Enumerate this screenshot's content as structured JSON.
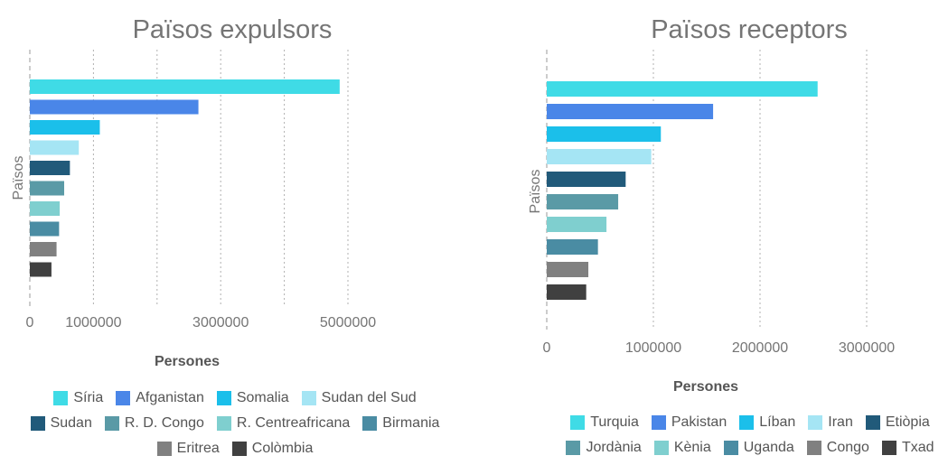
{
  "chart_data": [
    {
      "type": "bar",
      "orientation": "horizontal",
      "title": "Països expulsors",
      "xlabel": "Persones",
      "ylabel": "Països",
      "xlim": [
        0,
        5000000
      ],
      "xticks": [
        0,
        1000000,
        3000000,
        5000000
      ],
      "grid": true,
      "legend_position": "bottom",
      "series": [
        {
          "name": "Síria",
          "value": 4870000,
          "color": "#3fdbe6"
        },
        {
          "name": "Afganistan",
          "value": 2650000,
          "color": "#4a86e8"
        },
        {
          "name": "Somalia",
          "value": 1100000,
          "color": "#1bbfea"
        },
        {
          "name": "Sudan del Sud",
          "value": 770000,
          "color": "#a5e5f4"
        },
        {
          "name": "Sudan",
          "value": 630000,
          "color": "#215a7a"
        },
        {
          "name": "R. D. Congo",
          "value": 540000,
          "color": "#5a9aa6"
        },
        {
          "name": "R. Centreafricana",
          "value": 470000,
          "color": "#7fcfcf"
        },
        {
          "name": "Birmania",
          "value": 460000,
          "color": "#4a8ca3"
        },
        {
          "name": "Eritrea",
          "value": 420000,
          "color": "#808080"
        },
        {
          "name": "Colòmbia",
          "value": 340000,
          "color": "#404040"
        }
      ]
    },
    {
      "type": "bar",
      "orientation": "horizontal",
      "title": "Països receptors",
      "xlabel": "Persones",
      "ylabel": "Països",
      "xlim": [
        0,
        3000000
      ],
      "xticks": [
        0,
        1000000,
        2000000,
        3000000
      ],
      "grid": true,
      "legend_position": "bottom",
      "series": [
        {
          "name": "Turquia",
          "value": 2540000,
          "color": "#3fdbe6"
        },
        {
          "name": "Pakistan",
          "value": 1560000,
          "color": "#4a86e8"
        },
        {
          "name": "Líban",
          "value": 1070000,
          "color": "#1bbfea"
        },
        {
          "name": "Iran",
          "value": 980000,
          "color": "#a5e5f4"
        },
        {
          "name": "Etiòpia",
          "value": 740000,
          "color": "#215a7a"
        },
        {
          "name": "Jordània",
          "value": 670000,
          "color": "#5a9aa6"
        },
        {
          "name": "Kènia",
          "value": 560000,
          "color": "#7fcfcf"
        },
        {
          "name": "Uganda",
          "value": 480000,
          "color": "#4a8ca3"
        },
        {
          "name": "Congo",
          "value": 390000,
          "color": "#808080"
        },
        {
          "name": "Txad",
          "value": 370000,
          "color": "#404040"
        }
      ]
    }
  ]
}
